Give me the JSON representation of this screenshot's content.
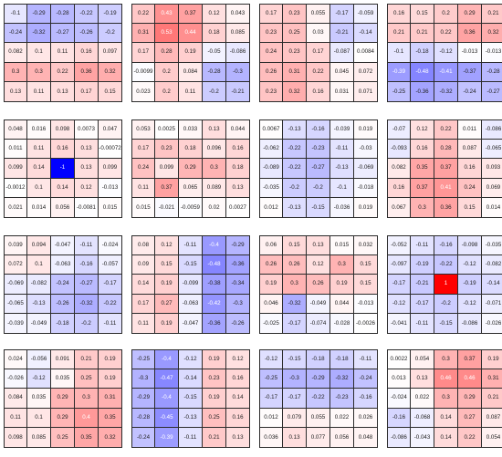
{
  "chart_data": {
    "type": "heatmap",
    "title": "",
    "xlabel": "",
    "ylabel": "",
    "color_scale": {
      "min": -1,
      "max": 1,
      "negative": "#0000ff",
      "zero": "#ffffff",
      "positive": "#ff0000"
    },
    "layout": {
      "rows": 4,
      "columns": 4
    },
    "panels": [
      {
        "values": [
          [
            "-0.1",
            "-0.29",
            "-0.28",
            "-0.22",
            "-0.19"
          ],
          [
            "-0.24",
            "-0.32",
            "-0.27",
            "-0.26",
            "-0.2"
          ],
          [
            "0.082",
            "0.1",
            "0.11",
            "0.16",
            "0.097"
          ],
          [
            "0.3",
            "0.3",
            "0.22",
            "0.36",
            "0.32"
          ],
          [
            "0.13",
            "0.11",
            "0.13",
            "0.17",
            "0.15"
          ]
        ]
      },
      {
        "values": [
          [
            "0.22",
            "0.43",
            "0.37",
            "0.12",
            "0.043"
          ],
          [
            "0.31",
            "0.53",
            "0.44",
            "0.18",
            "0.085"
          ],
          [
            "0.17",
            "0.28",
            "0.19",
            "-0.05",
            "-0.086"
          ],
          [
            "-0.0099",
            "0.2",
            "0.084",
            "-0.28",
            "-0.3"
          ],
          [
            "0.023",
            "0.2",
            "0.11",
            "-0.2",
            "-0.21"
          ]
        ]
      },
      {
        "values": [
          [
            "0.17",
            "0.23",
            "0.055",
            "-0.17",
            "-0.059"
          ],
          [
            "0.23",
            "0.25",
            "0.03",
            "-0.21",
            "-0.14"
          ],
          [
            "0.24",
            "0.23",
            "0.17",
            "-0.087",
            "0.0084"
          ],
          [
            "0.26",
            "0.31",
            "0.22",
            "0.045",
            "0.072"
          ],
          [
            "0.23",
            "0.32",
            "0.16",
            "0.031",
            "0.071"
          ]
        ]
      },
      {
        "values": [
          [
            "0.16",
            "0.15",
            "0.2",
            "0.29",
            "0.21"
          ],
          [
            "0.21",
            "0.21",
            "0.22",
            "0.36",
            "0.32"
          ],
          [
            "-0.1",
            "-0.18",
            "-0.12",
            "-0.013",
            "-0.013"
          ],
          [
            "-0.39",
            "-0.48",
            "-0.41",
            "-0.37",
            "-0.28"
          ],
          [
            "-0.25",
            "-0.36",
            "-0.32",
            "-0.24",
            "-0.27"
          ]
        ]
      },
      {
        "values": [
          [
            "0.048",
            "0.016",
            "0.098",
            "0.0073",
            "0.047"
          ],
          [
            "0.011",
            "0.11",
            "0.16",
            "0.13",
            "-0.00072"
          ],
          [
            "0.099",
            "0.14",
            "-1",
            "0.13",
            "0.099"
          ],
          [
            "-0.0012",
            "0.1",
            "0.14",
            "0.12",
            "-0.013"
          ],
          [
            "0.021",
            "0.014",
            "0.056",
            "-0.0081",
            "0.015"
          ]
        ]
      },
      {
        "values": [
          [
            "0.053",
            "0.0025",
            "0.033",
            "0.13",
            "0.044"
          ],
          [
            "0.17",
            "0.23",
            "0.18",
            "0.096",
            "0.16"
          ],
          [
            "0.24",
            "0.099",
            "0.29",
            "0.3",
            "0.18"
          ],
          [
            "0.11",
            "0.37",
            "0.065",
            "0.089",
            "0.13"
          ],
          [
            "0.015",
            "-0.021",
            "-0.0059",
            "0.02",
            "0.0027"
          ]
        ]
      },
      {
        "values": [
          [
            "0.0067",
            "-0.13",
            "-0.16",
            "-0.039",
            "0.019"
          ],
          [
            "-0.062",
            "-0.22",
            "-0.23",
            "-0.11",
            "-0.03"
          ],
          [
            "-0.089",
            "-0.22",
            "-0.27",
            "-0.13",
            "-0.069"
          ],
          [
            "-0.035",
            "-0.2",
            "-0.2",
            "-0.1",
            "-0.018"
          ],
          [
            "0.012",
            "-0.13",
            "-0.15",
            "-0.036",
            "0.019"
          ]
        ]
      },
      {
        "values": [
          [
            "-0.07",
            "0.12",
            "0.22",
            "0.011",
            "-0.086"
          ],
          [
            "-0.093",
            "0.16",
            "0.28",
            "0.087",
            "-0.065"
          ],
          [
            "0.082",
            "0.35",
            "0.37",
            "0.16",
            "0.093"
          ],
          [
            "0.16",
            "0.37",
            "0.41",
            "0.24",
            "0.069"
          ],
          [
            "0.067",
            "0.3",
            "0.36",
            "0.15",
            "0.014"
          ]
        ]
      },
      {
        "values": [
          [
            "0.039",
            "0.094",
            "-0.047",
            "-0.11",
            "-0.024"
          ],
          [
            "0.072",
            "0.1",
            "-0.063",
            "-0.16",
            "-0.057"
          ],
          [
            "-0.069",
            "-0.082",
            "-0.24",
            "-0.27",
            "-0.17"
          ],
          [
            "-0.065",
            "-0.13",
            "-0.26",
            "-0.32",
            "-0.22"
          ],
          [
            "-0.039",
            "-0.049",
            "-0.18",
            "-0.2",
            "-0.11"
          ]
        ]
      },
      {
        "values": [
          [
            "0.08",
            "0.12",
            "-0.11",
            "-0.4",
            "-0.29"
          ],
          [
            "0.09",
            "0.15",
            "-0.15",
            "-0.48",
            "-0.36"
          ],
          [
            "0.14",
            "0.19",
            "-0.099",
            "-0.38",
            "-0.34"
          ],
          [
            "0.17",
            "0.27",
            "-0.063",
            "-0.42",
            "-0.3"
          ],
          [
            "0.11",
            "0.19",
            "-0.047",
            "-0.36",
            "-0.26"
          ]
        ]
      },
      {
        "values": [
          [
            "0.06",
            "0.15",
            "0.13",
            "0.015",
            "0.032"
          ],
          [
            "0.26",
            "0.26",
            "0.12",
            "0.3",
            "0.15"
          ],
          [
            "0.19",
            "0.3",
            "0.26",
            "0.19",
            "0.15"
          ],
          [
            "0.046",
            "-0.32",
            "-0.049",
            "0.044",
            "-0.013"
          ],
          [
            "-0.025",
            "-0.17",
            "-0.074",
            "-0.028",
            "-0.0026"
          ]
        ]
      },
      {
        "values": [
          [
            "-0.052",
            "-0.11",
            "-0.16",
            "-0.098",
            "-0.035"
          ],
          [
            "-0.097",
            "-0.19",
            "-0.22",
            "-0.12",
            "-0.082"
          ],
          [
            "-0.17",
            "-0.21",
            "1",
            "-0.19",
            "-0.14"
          ],
          [
            "-0.12",
            "-0.17",
            "-0.2",
            "-0.12",
            "-0.071"
          ],
          [
            "-0.041",
            "-0.11",
            "-0.15",
            "-0.086",
            "-0.026"
          ]
        ]
      },
      {
        "values": [
          [
            "0.024",
            "-0.056",
            "0.091",
            "0.21",
            "0.19"
          ],
          [
            "-0.026",
            "-0.12",
            "0.035",
            "0.25",
            "0.19"
          ],
          [
            "0.084",
            "0.035",
            "0.29",
            "0.3",
            "0.31"
          ],
          [
            "0.11",
            "0.1",
            "0.29",
            "0.4",
            "0.35"
          ],
          [
            "0.098",
            "0.085",
            "0.25",
            "0.35",
            "0.32"
          ]
        ]
      },
      {
        "values": [
          [
            "-0.25",
            "-0.4",
            "-0.12",
            "0.19",
            "0.12"
          ],
          [
            "-0.3",
            "-0.47",
            "-0.14",
            "0.23",
            "0.16"
          ],
          [
            "-0.29",
            "-0.4",
            "-0.15",
            "0.19",
            "0.14"
          ],
          [
            "-0.28",
            "-0.45",
            "-0.13",
            "0.25",
            "0.16"
          ],
          [
            "-0.24",
            "-0.39",
            "-0.11",
            "0.21",
            "0.13"
          ]
        ]
      },
      {
        "values": [
          [
            "-0.12",
            "-0.15",
            "-0.18",
            "-0.18",
            "-0.11"
          ],
          [
            "-0.25",
            "-0.3",
            "-0.29",
            "-0.32",
            "-0.24"
          ],
          [
            "-0.17",
            "-0.17",
            "-0.22",
            "-0.23",
            "-0.16"
          ],
          [
            "0.012",
            "0.079",
            "0.055",
            "0.022",
            "0.026"
          ],
          [
            "0.036",
            "0.13",
            "0.077",
            "0.056",
            "0.048"
          ]
        ]
      },
      {
        "values": [
          [
            "0.0022",
            "0.054",
            "0.3",
            "0.37",
            "0.19"
          ],
          [
            "0.013",
            "0.13",
            "0.46",
            "0.46",
            "0.31"
          ],
          [
            "-0.024",
            "0.022",
            "0.3",
            "0.29",
            "0.21"
          ],
          [
            "-0.16",
            "-0.068",
            "0.14",
            "0.27",
            "0.087"
          ],
          [
            "-0.086",
            "-0.043",
            "0.14",
            "0.22",
            "0.054"
          ]
        ]
      }
    ]
  }
}
